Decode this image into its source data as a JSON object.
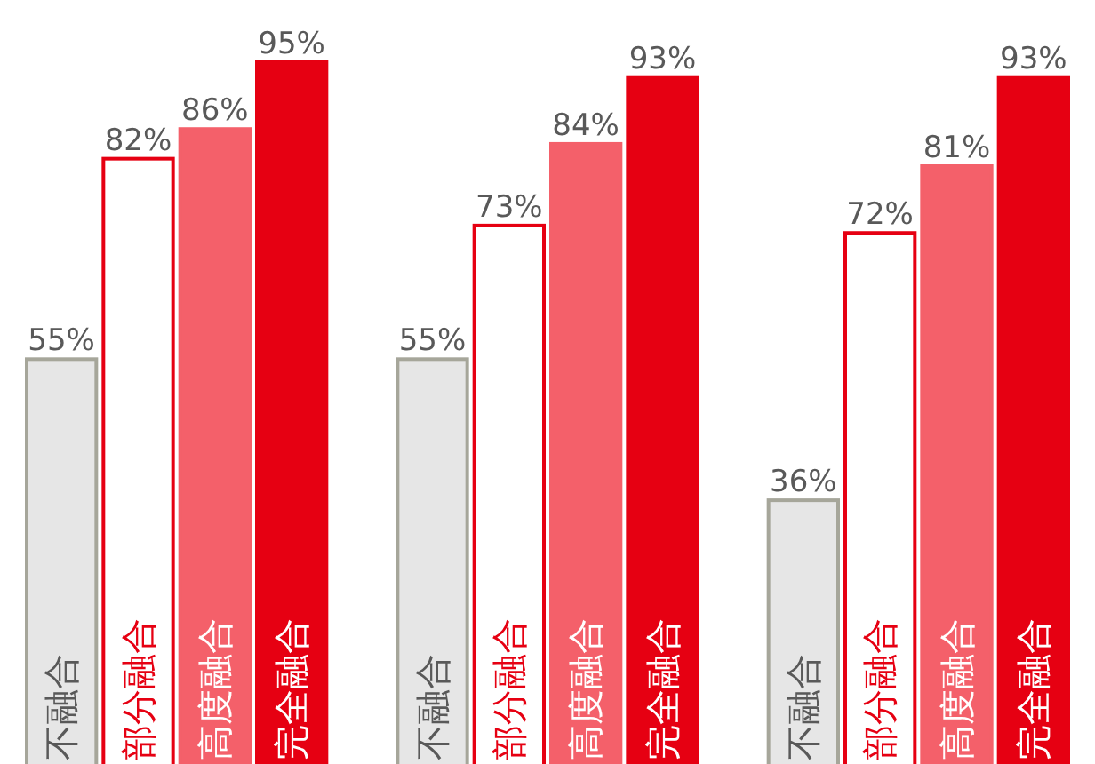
{
  "chart_data": {
    "type": "bar",
    "categories": [
      null,
      null,
      null
    ],
    "legend": false,
    "series": [
      {
        "name": "不融合",
        "color": "#e6e6e6",
        "values": [
          55,
          55,
          36
        ],
        "value_labels": [
          "55%",
          "55%",
          "36%"
        ]
      },
      {
        "name": "部分融合",
        "color": "#ffffff",
        "values": [
          82,
          73,
          72
        ],
        "value_labels": [
          "82%",
          "73%",
          "72%"
        ]
      },
      {
        "name": "高度融合",
        "color": "#f4606a",
        "values": [
          86,
          84,
          81
        ],
        "value_labels": [
          "86%",
          "84%",
          "81%"
        ]
      },
      {
        "name": "完全融合",
        "color": "#e60012",
        "values": [
          95,
          93,
          93
        ],
        "value_labels": [
          "95%",
          "93%",
          "93%"
        ]
      }
    ]
  }
}
